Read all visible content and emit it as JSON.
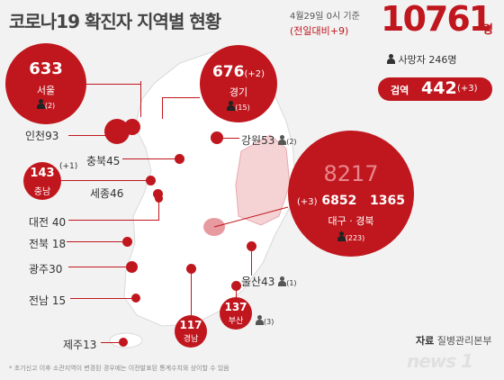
{
  "header": {
    "title": "코로나19 확진자 지역별 현황",
    "date": "4월29일 0시 기준",
    "change": "(전일대비+9)",
    "total": "10761",
    "total_unit": "명",
    "deaths": "사망자 246명",
    "quarantine_label": "검역",
    "quarantine_value": "442",
    "quarantine_change": "(+3)"
  },
  "regions": {
    "seoul": {
      "value": "633",
      "name": "서울",
      "deaths": "(2)"
    },
    "gyeonggi": {
      "value": "676",
      "change": "(+2)",
      "name": "경기",
      "deaths": "(15)"
    },
    "incheon": {
      "name": "인천",
      "value": "93"
    },
    "gangwon": {
      "name": "강원",
      "value": "53",
      "deaths": "(2)"
    },
    "chungbuk": {
      "name": "충북",
      "value": "45"
    },
    "chungnam": {
      "value": "143",
      "change": "(+1)",
      "name": "충남"
    },
    "sejong": {
      "name": "세종",
      "value": "46"
    },
    "daejeon": {
      "name": "대전",
      "value": "40"
    },
    "jeonbuk": {
      "name": "전북",
      "value": "18"
    },
    "gwangju": {
      "name": "광주",
      "value": "30"
    },
    "jeonnam": {
      "name": "전남",
      "value": "15"
    },
    "jeju": {
      "name": "제주",
      "value": "13"
    },
    "gyeongnam": {
      "value": "117",
      "name": "경남"
    },
    "busan": {
      "value": "137",
      "name": "부산",
      "deaths": "(3)"
    },
    "ulsan": {
      "name": "울산",
      "value": "43",
      "deaths": "(1)"
    },
    "daegu_gyeongbuk": {
      "total": "8217",
      "change": "(+3)",
      "daegu": "6852",
      "gyeongbuk": "1365",
      "names": "대구 · 경북",
      "deaths": "(223)"
    }
  },
  "footer": {
    "source_label": "자료",
    "source": "질병관리본부",
    "note": "* 초기신고 이후 소관지역이 변경된 경우에는 이전발표된 통계수치와 상이할 수 있음",
    "logo": "news 1"
  },
  "colors": {
    "accent": "#c0171e",
    "map": "#ffffff",
    "background": "#f2f2f2"
  }
}
